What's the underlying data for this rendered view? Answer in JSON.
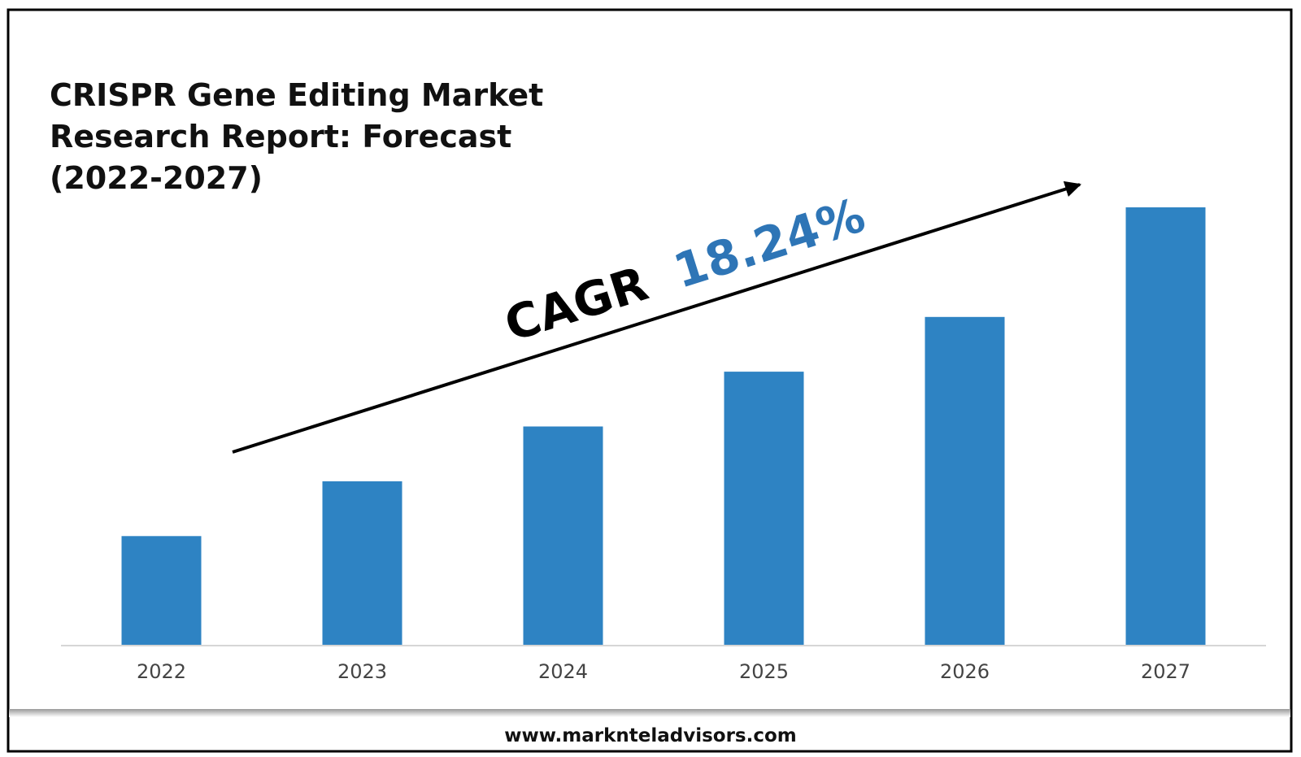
{
  "chart_data": {
    "type": "bar",
    "title": "CRISPR Gene Editing Market Research Report: Forecast (2022-2027)",
    "title_lines": [
      "CRISPR Gene Editing Market",
      "Research Report: Forecast",
      "(2022-2027)"
    ],
    "categories": [
      "2022",
      "2023",
      "2024",
      "2025",
      "2026",
      "2027"
    ],
    "values": [
      1.0,
      1.5,
      2.0,
      2.5,
      3.0,
      4.0
    ],
    "ylim": [
      0,
      4.25
    ],
    "xlabel": "",
    "ylabel": "",
    "grid": false,
    "legend": "none",
    "bar_color": "#2e83c3",
    "annotation": {
      "prefix": "CAGR",
      "value": "18.24%",
      "prefix_color": "#000000",
      "value_color": "#2e75b6"
    }
  },
  "footer": {
    "website": "www.marknteladvisors.com"
  }
}
